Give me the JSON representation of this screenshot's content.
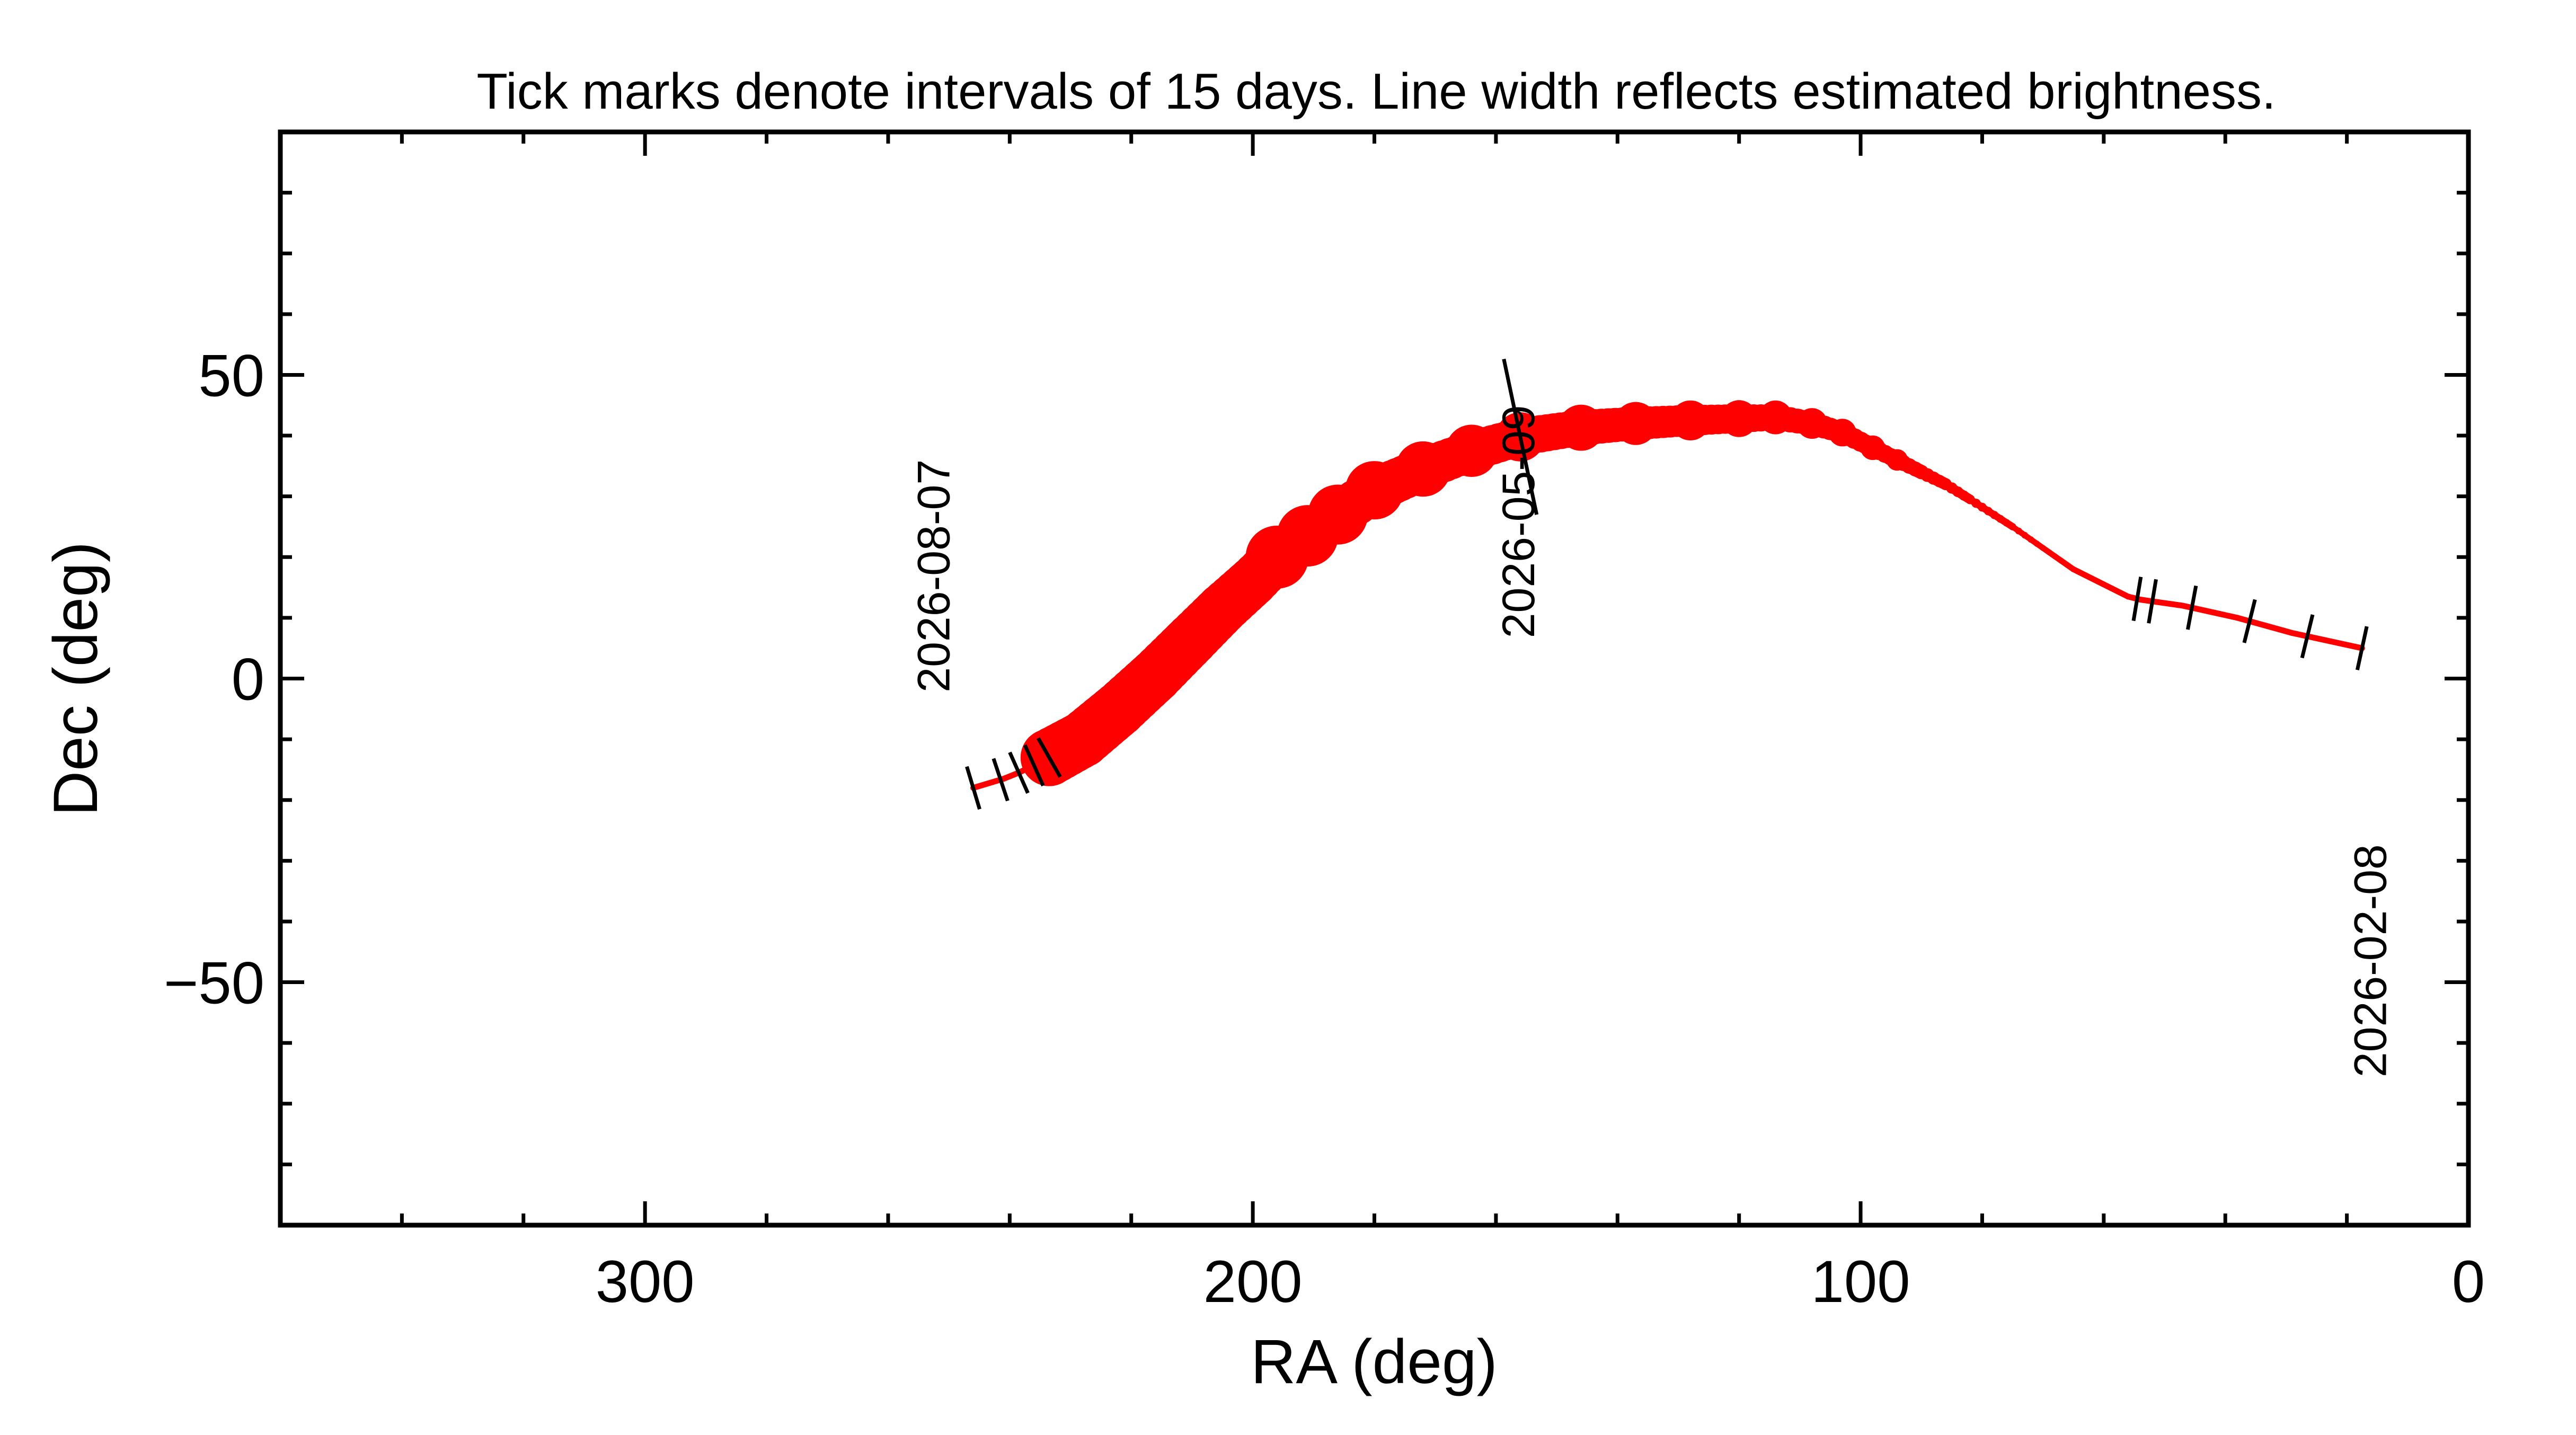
{
  "chart_data": {
    "type": "line",
    "title": "Tick marks denote intervals of 15 days.  Line width reflects estimated brightness.",
    "xlabel": "RA (deg)",
    "ylabel": "Dec (deg)",
    "xlim": [
      360,
      0
    ],
    "ylim": [
      -90,
      90
    ],
    "x_ticks": [
      300,
      200,
      100,
      0
    ],
    "y_ticks": [
      50,
      0,
      -50
    ],
    "line_color": "#ff0000",
    "tick_mark_color": "#000000",
    "series": [
      {
        "x": [
          17.5,
          29,
          38,
          47,
          54,
          56,
          65,
          75,
          82,
          86,
          90,
          94,
          98,
          103,
          108,
          114,
          120,
          128,
          137,
          146,
          156,
          164,
          172,
          180,
          186,
          191,
          196,
          200,
          205,
          210,
          216,
          222,
          228,
          233.5,
          234.5,
          236.5,
          238.5,
          241,
          246
        ],
        "y": [
          5,
          7.5,
          10,
          12,
          13,
          13.5,
          18,
          25,
          29.5,
          32,
          34,
          36,
          38,
          40.5,
          42,
          43,
          42.8,
          42.5,
          42,
          41.3,
          39.8,
          37.5,
          34.5,
          31,
          27,
          23.5,
          20,
          16,
          11.5,
          6.5,
          0.5,
          -5,
          -10,
          -13,
          -13.7,
          -14.5,
          -15.5,
          -16.5,
          -18
        ],
        "brightness": [
          1,
          1,
          1,
          1,
          1,
          1.2,
          2,
          3,
          4,
          5,
          6,
          7,
          8,
          9,
          10,
          11,
          12,
          13,
          14,
          15,
          16,
          17,
          18,
          19,
          19.5,
          20,
          20.5,
          21,
          21.5,
          22,
          22.5,
          23,
          23.5,
          24,
          1,
          1,
          1,
          1,
          1
        ]
      }
    ],
    "tick_marks_15day_ra": [
      17.5,
      26.5,
      36,
      45.5,
      52,
      54.5,
      156,
      233.5,
      236,
      238.5,
      241.5,
      246
    ],
    "date_labels": [
      {
        "text": "2026-02-08",
        "ra": 17.5,
        "dec": 5
      },
      {
        "text": "2026-05-09",
        "ra": 156,
        "dec": 39.8
      },
      {
        "text": "2026-08-07",
        "ra": 246,
        "dec": -18
      }
    ]
  }
}
